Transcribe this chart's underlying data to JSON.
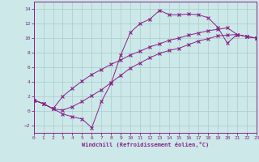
{
  "bg_color": "#cce8e8",
  "grid_color": "#aacccc",
  "line_color": "#882288",
  "xlabel": "Windchill (Refroidissement éolien,°C)",
  "xlim": [
    0,
    23
  ],
  "ylim": [
    -3,
    15
  ],
  "xticks": [
    0,
    1,
    2,
    3,
    4,
    5,
    6,
    7,
    8,
    9,
    10,
    11,
    12,
    13,
    14,
    15,
    16,
    17,
    18,
    19,
    20,
    21,
    22,
    23
  ],
  "yticks": [
    -2,
    0,
    2,
    4,
    6,
    8,
    10,
    12,
    14
  ],
  "line1_x": [
    0,
    1,
    2,
    3,
    4,
    5,
    6,
    7,
    8,
    9,
    10,
    11,
    12,
    13,
    14,
    15,
    16,
    17,
    18,
    19,
    20,
    21,
    22,
    23
  ],
  "line1_y": [
    1.5,
    1.0,
    0.3,
    -0.4,
    -0.8,
    -1.1,
    -2.3,
    1.3,
    3.8,
    7.7,
    10.8,
    12.0,
    12.6,
    13.8,
    13.2,
    13.2,
    13.3,
    13.2,
    12.8,
    11.5,
    9.3,
    10.5,
    10.2,
    10.0
  ],
  "line2_x": [
    0,
    1,
    2,
    3,
    4,
    5,
    6,
    7,
    8,
    9,
    10,
    11,
    12,
    13,
    14,
    15,
    16,
    17,
    18,
    19,
    20,
    21,
    22,
    23
  ],
  "line2_y": [
    1.5,
    1.0,
    0.3,
    2.0,
    3.1,
    4.1,
    5.0,
    5.7,
    6.4,
    7.0,
    7.7,
    8.2,
    8.8,
    9.2,
    9.7,
    10.0,
    10.4,
    10.7,
    11.0,
    11.2,
    11.4,
    10.5,
    10.2,
    10.0
  ],
  "line3_x": [
    0,
    1,
    2,
    3,
    4,
    5,
    6,
    7,
    8,
    9,
    10,
    11,
    12,
    13,
    14,
    15,
    16,
    17,
    18,
    19,
    20,
    21,
    22,
    23
  ],
  "line3_y": [
    1.5,
    1.0,
    0.3,
    0.1,
    0.6,
    1.3,
    2.1,
    2.9,
    3.9,
    4.9,
    5.9,
    6.6,
    7.3,
    7.9,
    8.3,
    8.6,
    9.1,
    9.6,
    9.9,
    10.3,
    10.4,
    10.5,
    10.2,
    10.0
  ]
}
